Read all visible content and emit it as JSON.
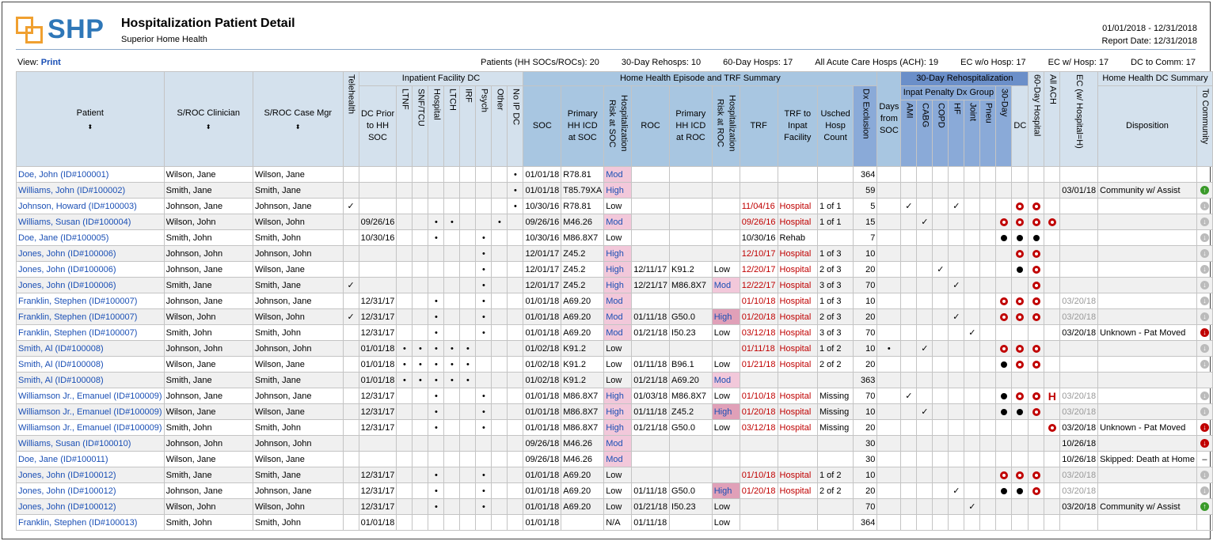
{
  "header": {
    "logo": "SHP",
    "title": "Hospitalization Patient Detail",
    "subtitle": "Superior Home Health",
    "date_range": "01/01/2018 - 12/31/2018",
    "report_date": "Report Date: 12/31/2018"
  },
  "view": {
    "label": "View:",
    "link": "Print"
  },
  "stats": [
    "Patients (HH SOCs/ROCs): 20",
    "30-Day Rehosps: 10",
    "60-Day Hosps: 17",
    "All Acute Care Hosps (ACH): 19",
    "EC w/o Hosp: 17",
    "EC w/ Hosp: 17",
    "DC to Comm: 17"
  ],
  "groups": {
    "ifdc": "Inpatient Facility DC",
    "hh": "Home Health Episode and TRF Summary",
    "rehosp": "30-Day Rehospitalization",
    "penalty": "Inpat Penalty Dx Group",
    "hhdc": "Home Health DC Summary"
  },
  "columns": {
    "patient": "Patient",
    "clin": "S/ROC Clinician",
    "mgr": "S/ROC Case Mgr",
    "tele": "Telehealth",
    "dcprior": "DC Prior to HH SOC",
    "ltnf": "LTNF",
    "snf": "SNF/TCU",
    "hosp": "Hospital",
    "ltch": "LTCH",
    "irf": "IRF",
    "psych": "Psych",
    "other": "Other",
    "noip": "No IP DC",
    "soc": "SOC",
    "picd_soc": "Primary HH ICD at SOC",
    "risk_soc": "Hospitalization Risk at SOC",
    "roc": "ROC",
    "picd_roc": "Primary HH ICD at ROC",
    "risk_roc": "Hospitalization Risk at ROC",
    "trf": "TRF",
    "trf_to": "TRF to Inpat Facility",
    "usched": "Usched Hosp Count",
    "days": "Days from SOC",
    "dxex": "Dx Exclusion",
    "ami": "AMI",
    "cabg": "CABG",
    "copd": "COPD",
    "hf": "HF",
    "joint": "Joint",
    "pneu": "Pneu",
    "d30": "30-Day",
    "h60": "60-Day Hospital",
    "ach": "All ACH",
    "ec": "EC (w/ Hospital=H)",
    "dc": "DC",
    "disp": "Disposition",
    "tocomm": "To Community"
  },
  "rows": [
    {
      "p": "Doe, John (ID#100001)",
      "cl": "Wilson, Jane",
      "mg": "Wilson, Jane",
      "noip": "•",
      "soc": "01/01/18",
      "icd": "R78.81",
      "risk": "Mod",
      "days": "364"
    },
    {
      "p": "Williams, John (ID#100002)",
      "cl": "Smith, Jane",
      "mg": "Smith, Jane",
      "noip": "•",
      "soc": "01/01/18",
      "icd": "T85.79XA",
      "risk": "High",
      "days": "59",
      "dc": "03/01/18",
      "disp": "Community w/ Assist",
      "tc": "up"
    },
    {
      "p": "Johnson, Howard (ID#100003)",
      "cl": "Johnson, Jane",
      "mg": "Johnson, Jane",
      "tele": "✓",
      "noip": "•",
      "soc": "10/30/16",
      "icd": "R78.81",
      "risk": "Low",
      "trf": "11/04/16",
      "trfto": "Hospital",
      "us": "1 of 1",
      "days": "5",
      "ami": "✓",
      "hf": "✓",
      "h60": "ring",
      "ach": "ring",
      "tc": "gray"
    },
    {
      "p": "Williams, Susan (ID#100004)",
      "cl": "Wilson, John",
      "mg": "Wilson, John",
      "dcp": "09/26/16",
      "hosp": "•",
      "ltch": "•",
      "other": "•",
      "soc": "09/26/16",
      "icd": "M46.26",
      "risk": "Mod",
      "trf": "09/26/16",
      "trfto": "Hospital",
      "us": "1 of 1",
      "days": "15",
      "cabg": "✓",
      "d30": "ring",
      "h60": "ring",
      "ach": "ring",
      "ec": "ring",
      "tc": "gray"
    },
    {
      "p": "Doe, Jane (ID#100005)",
      "cl": "Smith, John",
      "mg": "Smith, John",
      "dcp": "10/30/16",
      "hosp": "•",
      "psych": "•",
      "soc": "10/30/16",
      "icd": "M86.8X7",
      "risk": "Low",
      "trf": "10/30/16",
      "trfto": "Rehab",
      "trfblack": true,
      "days": "7",
      "d30": "dot",
      "h60": "dot",
      "ach": "dot",
      "tc": "gray"
    },
    {
      "p": "Jones, John (ID#100006)",
      "cl": "Johnson, John",
      "mg": "Johnson, John",
      "psych": "•",
      "soc": "12/01/17",
      "icd": "Z45.2",
      "risk": "High",
      "trf": "12/10/17",
      "trfto": "Hospital",
      "us": "1 of 3",
      "days": "10",
      "h60": "ring",
      "ach": "ring",
      "tc": "gray"
    },
    {
      "p": "Jones, John (ID#100006)",
      "cl": "Johnson, Jane",
      "mg": "Wilson, Jane",
      "psych": "•",
      "soc": "12/01/17",
      "icd": "Z45.2",
      "risk": "High",
      "roc": "12/11/17",
      "ricd": "K91.2",
      "rrisk": "Low",
      "trf": "12/20/17",
      "trfto": "Hospital",
      "us": "2 of 3",
      "days": "20",
      "copd": "✓",
      "h60": "dot",
      "ach": "ring",
      "tc": "gray"
    },
    {
      "p": "Jones, John (ID#100006)",
      "cl": "Smith, Jane",
      "mg": "Smith, Jane",
      "tele": "✓",
      "psych": "•",
      "soc": "12/01/17",
      "icd": "Z45.2",
      "risk": "High",
      "roc": "12/21/17",
      "ricd": "M86.8X7",
      "rrisk": "Mod",
      "trf": "12/22/17",
      "trfto": "Hospital",
      "us": "3 of 3",
      "days": "70",
      "hf": "✓",
      "ach": "ring",
      "tc": "gray"
    },
    {
      "p": "Franklin, Stephen (ID#100007)",
      "cl": "Johnson, Jane",
      "mg": "Johnson, Jane",
      "dcp": "12/31/17",
      "hosp": "•",
      "psych": "•",
      "soc": "01/01/18",
      "icd": "A69.20",
      "risk": "Mod",
      "trf": "01/10/18",
      "trfto": "Hospital",
      "us": "1 of 3",
      "days": "10",
      "d30": "ring",
      "h60": "ring",
      "ach": "ring",
      "dc": "03/20/18",
      "dcgrey": true,
      "tc": "gray"
    },
    {
      "p": "Franklin, Stephen (ID#100007)",
      "cl": "Wilson, John",
      "mg": "Wilson, John",
      "tele": "✓",
      "dcp": "12/31/17",
      "hosp": "•",
      "psych": "•",
      "soc": "01/01/18",
      "icd": "A69.20",
      "risk": "Mod",
      "roc": "01/11/18",
      "ricd": "G50.0",
      "rrisk": "High",
      "trf": "01/20/18",
      "trfto": "Hospital",
      "us": "2 of 3",
      "days": "20",
      "hf": "✓",
      "d30": "ring",
      "h60": "ring",
      "ach": "ring",
      "dc": "03/20/18",
      "dcgrey": true,
      "tc": "gray"
    },
    {
      "p": "Franklin, Stephen (ID#100007)",
      "cl": "Smith, John",
      "mg": "Smith, John",
      "dcp": "12/31/17",
      "hosp": "•",
      "psych": "•",
      "soc": "01/01/18",
      "icd": "A69.20",
      "risk": "Mod",
      "roc": "01/21/18",
      "ricd": "I50.23",
      "rrisk": "Low",
      "trf": "03/12/18",
      "trfto": "Hospital",
      "us": "3 of 3",
      "days": "70",
      "joint": "✓",
      "dc": "03/20/18",
      "disp": "Unknown - Pat Moved",
      "tc": "dn"
    },
    {
      "p": "Smith, Al (ID#100008)",
      "cl": "Johnson, John",
      "mg": "Johnson, John",
      "dcp": "01/01/18",
      "ltnf": "•",
      "snf": "•",
      "hosp": "•",
      "ltch": "•",
      "irf": "•",
      "soc": "01/02/18",
      "icd": "K91.2",
      "risk": "Low",
      "trf": "01/11/18",
      "trfto": "Hospital",
      "us": "1 of 2",
      "days": "10",
      "dxex": "•",
      "cabg": "✓",
      "d30": "ring",
      "h60": "ring",
      "ach": "ring",
      "tc": "gray"
    },
    {
      "p": "Smith, Al (ID#100008)",
      "cl": "Wilson, Jane",
      "mg": "Wilson, Jane",
      "dcp": "01/01/18",
      "ltnf": "•",
      "snf": "•",
      "hosp": "•",
      "ltch": "•",
      "irf": "•",
      "soc": "01/02/18",
      "icd": "K91.2",
      "risk": "Low",
      "roc": "01/11/18",
      "ricd": "B96.1",
      "rrisk": "Low",
      "trf": "01/21/18",
      "trfto": "Hospital",
      "us": "2 of 2",
      "days": "20",
      "d30": "dot",
      "h60": "ring",
      "ach": "ring",
      "tc": "gray"
    },
    {
      "p": "Smith, Al (ID#100008)",
      "cl": "Smith, Jane",
      "mg": "Smith, Jane",
      "dcp": "01/01/18",
      "ltnf": "•",
      "snf": "•",
      "hosp": "•",
      "ltch": "•",
      "irf": "•",
      "soc": "01/02/18",
      "icd": "K91.2",
      "risk": "Low",
      "roc": "01/21/18",
      "ricd": "A69.20",
      "rrisk": "Mod",
      "days": "363"
    },
    {
      "p": "Williamson Jr., Emanuel (ID#100009)",
      "cl": "Johnson, Jane",
      "mg": "Johnson, Jane",
      "dcp": "12/31/17",
      "hosp": "•",
      "psych": "•",
      "soc": "01/01/18",
      "icd": "M86.8X7",
      "risk": "High",
      "roc": "01/03/18",
      "ricd": "M86.8X7",
      "rrisk": "Low",
      "trf": "01/10/18",
      "trfto": "Hospital",
      "us": "Missing",
      "days": "70",
      "ami": "✓",
      "d30": "dot",
      "h60": "ring",
      "ach": "ring",
      "ec": "H",
      "dc": "03/20/18",
      "dcgrey": true,
      "tc": "gray"
    },
    {
      "p": "Williamson Jr., Emanuel (ID#100009)",
      "cl": "Wilson, Jane",
      "mg": "Wilson, Jane",
      "dcp": "12/31/17",
      "hosp": "•",
      "psych": "•",
      "soc": "01/01/18",
      "icd": "M86.8X7",
      "risk": "High",
      "roc": "01/11/18",
      "ricd": "Z45.2",
      "rrisk": "High",
      "trf": "01/20/18",
      "trfto": "Hospital",
      "us": "Missing",
      "days": "10",
      "cabg": "✓",
      "d30": "dot",
      "h60": "dot",
      "ach": "ring",
      "dc": "03/20/18",
      "dcgrey": true,
      "tc": "gray"
    },
    {
      "p": "Williamson Jr., Emanuel (ID#100009)",
      "cl": "Smith, John",
      "mg": "Smith, John",
      "dcp": "12/31/17",
      "hosp": "•",
      "psych": "•",
      "soc": "01/01/18",
      "icd": "M86.8X7",
      "risk": "High",
      "roc": "01/21/18",
      "ricd": "G50.0",
      "rrisk": "Low",
      "trf": "03/12/18",
      "trfto": "Hospital",
      "us": "Missing",
      "days": "20",
      "ec": "ring",
      "dc": "03/20/18",
      "disp": "Unknown - Pat Moved",
      "tc": "dn"
    },
    {
      "p": "Williams, Susan (ID#100010)",
      "cl": "Johnson, John",
      "mg": "Johnson, John",
      "soc": "09/26/18",
      "icd": "M46.26",
      "risk": "Mod",
      "days": "30",
      "dc": "10/26/18",
      "tc": "dn"
    },
    {
      "p": "Doe, Jane (ID#100011)",
      "cl": "Wilson, Jane",
      "mg": "Wilson, Jane",
      "soc": "09/26/18",
      "icd": "M46.26",
      "risk": "Mod",
      "days": "30",
      "dc": "10/26/18",
      "disp": "Skipped: Death at Home",
      "tc": "dash"
    },
    {
      "p": "Jones, John (ID#100012)",
      "cl": "Smith, Jane",
      "mg": "Smith, Jane",
      "dcp": "12/31/17",
      "hosp": "•",
      "psych": "•",
      "soc": "01/01/18",
      "icd": "A69.20",
      "risk": "Low",
      "trf": "01/10/18",
      "trfto": "Hospital",
      "us": "1 of 2",
      "days": "10",
      "d30": "ring",
      "h60": "ring",
      "ach": "ring",
      "dc": "03/20/18",
      "dcgrey": true,
      "tc": "gray"
    },
    {
      "p": "Jones, John (ID#100012)",
      "cl": "Johnson, Jane",
      "mg": "Johnson, Jane",
      "dcp": "12/31/17",
      "hosp": "•",
      "psych": "•",
      "soc": "01/01/18",
      "icd": "A69.20",
      "risk": "Low",
      "roc": "01/11/18",
      "ricd": "G50.0",
      "rrisk": "High",
      "trf": "01/20/18",
      "trfto": "Hospital",
      "us": "2 of 2",
      "days": "20",
      "hf": "✓",
      "d30": "dot",
      "h60": "dot",
      "ach": "ring",
      "dc": "03/20/18",
      "dcgrey": true,
      "tc": "gray"
    },
    {
      "p": "Jones, John (ID#100012)",
      "cl": "Wilson, John",
      "mg": "Wilson, John",
      "dcp": "12/31/17",
      "hosp": "•",
      "psych": "•",
      "soc": "01/01/18",
      "icd": "A69.20",
      "risk": "Low",
      "roc": "01/21/18",
      "ricd": "I50.23",
      "rrisk": "Low",
      "days": "70",
      "joint": "✓",
      "dc": "03/20/18",
      "disp": "Community w/ Assist",
      "tc": "up"
    },
    {
      "p": "Franklin, Stephen (ID#100013)",
      "cl": "Smith, John",
      "mg": "Smith, John",
      "dcp": "01/01/18",
      "soc": "01/01/18",
      "risk": "N/A",
      "roc": "01/11/18",
      "rrisk": "Low",
      "days": "364"
    }
  ]
}
